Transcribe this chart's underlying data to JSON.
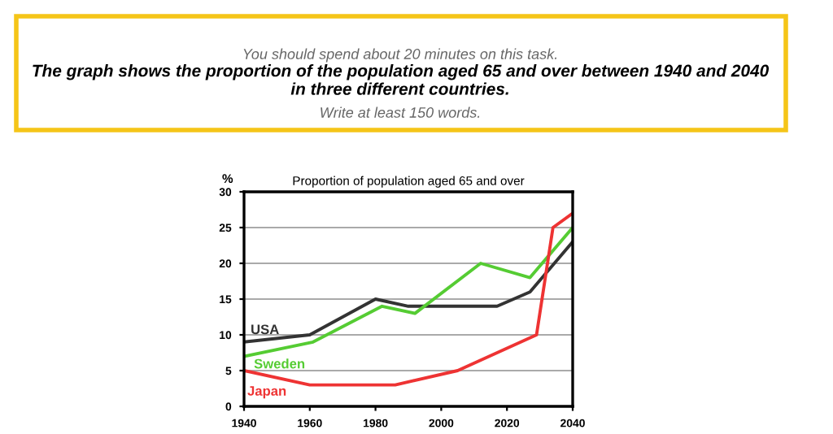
{
  "chart_data": {
    "type": "line",
    "title": "Proportion of population aged 65 and over",
    "ylabel": "%",
    "annotations": [
      "You should spend about 20 minutes on this task.",
      "The graph shows the proportion of the population aged 65 and over between 1940 and 2040 in three different countries.",
      "Write at least 150 words."
    ],
    "series": [
      {
        "name": "USA",
        "color": "#333333",
        "x": [
          1940,
          1960,
          1980,
          1990,
          2000,
          2017,
          2027,
          2040
        ],
        "values": [
          9,
          10,
          15,
          14,
          14,
          14,
          16,
          23
        ]
      },
      {
        "name": "Sweden",
        "color": "#55cc33",
        "x": [
          1940,
          1961,
          1982,
          1992,
          2012,
          2027,
          2040
        ],
        "values": [
          7,
          9,
          14,
          13,
          20,
          18,
          25
        ]
      },
      {
        "name": "Japan",
        "color": "#ee3333",
        "x": [
          1940,
          1960,
          1986,
          2005,
          2029,
          2034,
          2040
        ],
        "values": [
          5,
          3,
          3,
          5,
          10,
          25,
          27
        ]
      }
    ],
    "xlim": [
      1940,
      2040
    ],
    "xticks": [
      1940,
      1960,
      1980,
      2000,
      2020,
      2040
    ],
    "ylim": [
      0,
      30
    ],
    "yticks": [
      0,
      5,
      10,
      15,
      20,
      25,
      30
    ],
    "grid": "y",
    "legend": false,
    "marker": "none",
    "line_style": "solid"
  }
}
